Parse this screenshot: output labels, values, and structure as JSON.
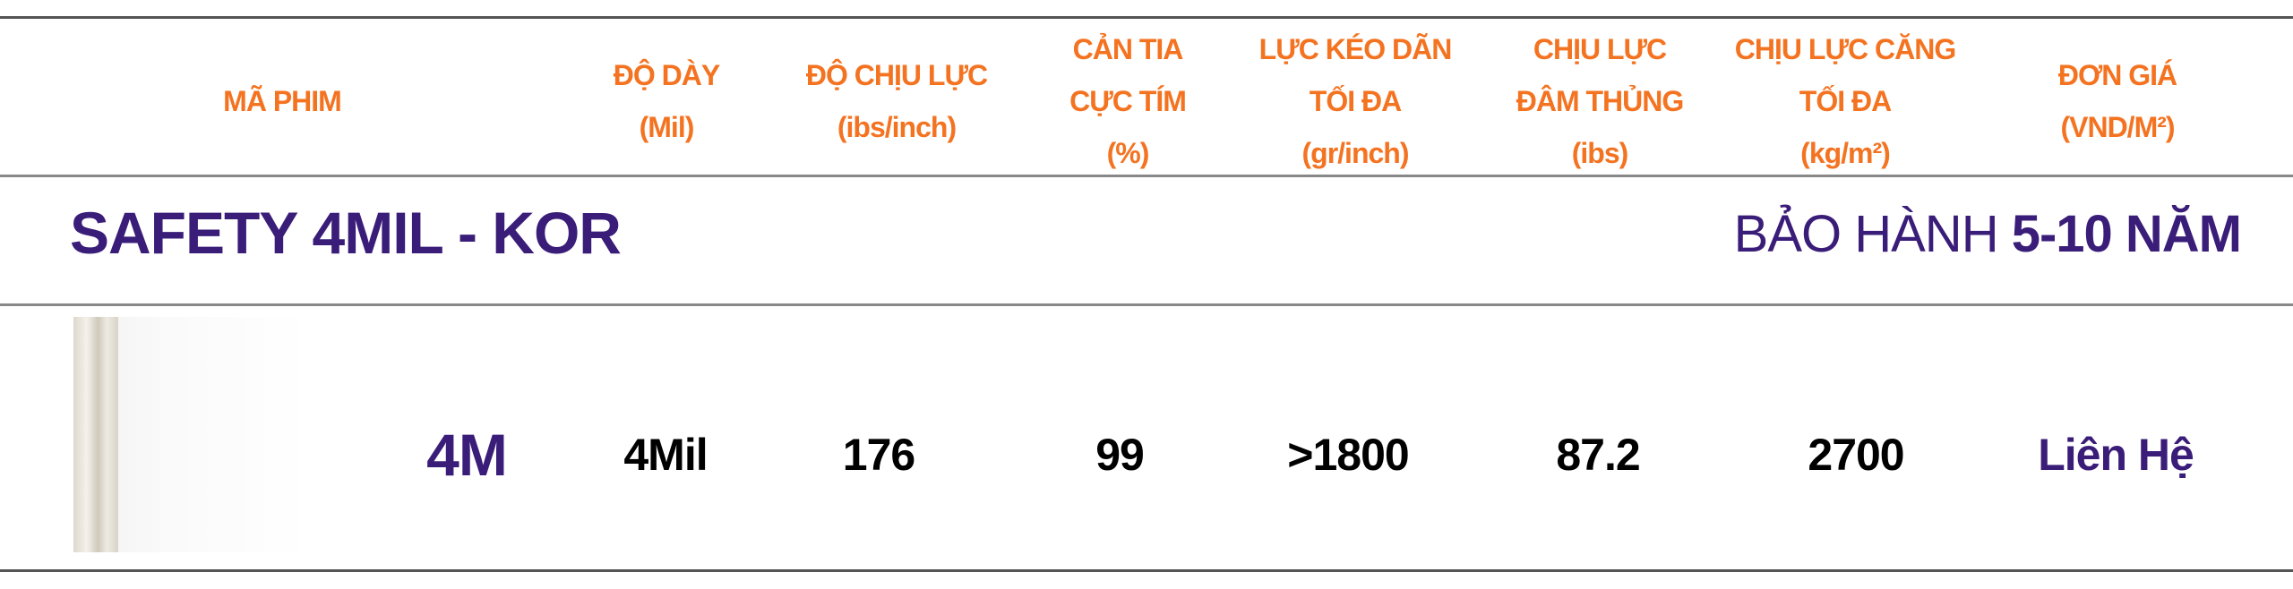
{
  "headers": [
    {
      "label": "MÃ PHIM"
    },
    {
      "label": "ĐỘ DÀY\n(Mil)"
    },
    {
      "label": "ĐỘ CHỊU LỰC\n(ibs/inch)"
    },
    {
      "label": "CẢN TIA\nCỰC TÍM\n(%)"
    },
    {
      "label": "LỰC KÉO DÃN\nTỐI ĐA\n(gr/inch)"
    },
    {
      "label": "CHỊU LỰC\nĐÂM THỦNG\n(ibs)"
    },
    {
      "label": "CHỊU LỰC CĂNG\nTỐI ĐA\n(kg/m²)"
    },
    {
      "label": "ĐƠN GIÁ\n(VND/M²)"
    }
  ],
  "product": {
    "title": "SAFETY 4MIL - KOR",
    "warranty_prefix": "BẢO HÀNH ",
    "warranty_value": "5-10 NĂM"
  },
  "row": {
    "code": "4M",
    "thickness": "4Mil",
    "strength": "176",
    "uv": "99",
    "tensile": ">1800",
    "puncture": "87.2",
    "tension": "2700",
    "price": "Liên Hệ"
  },
  "colors": {
    "header": "#f47321",
    "brand": "#3a1d78"
  }
}
